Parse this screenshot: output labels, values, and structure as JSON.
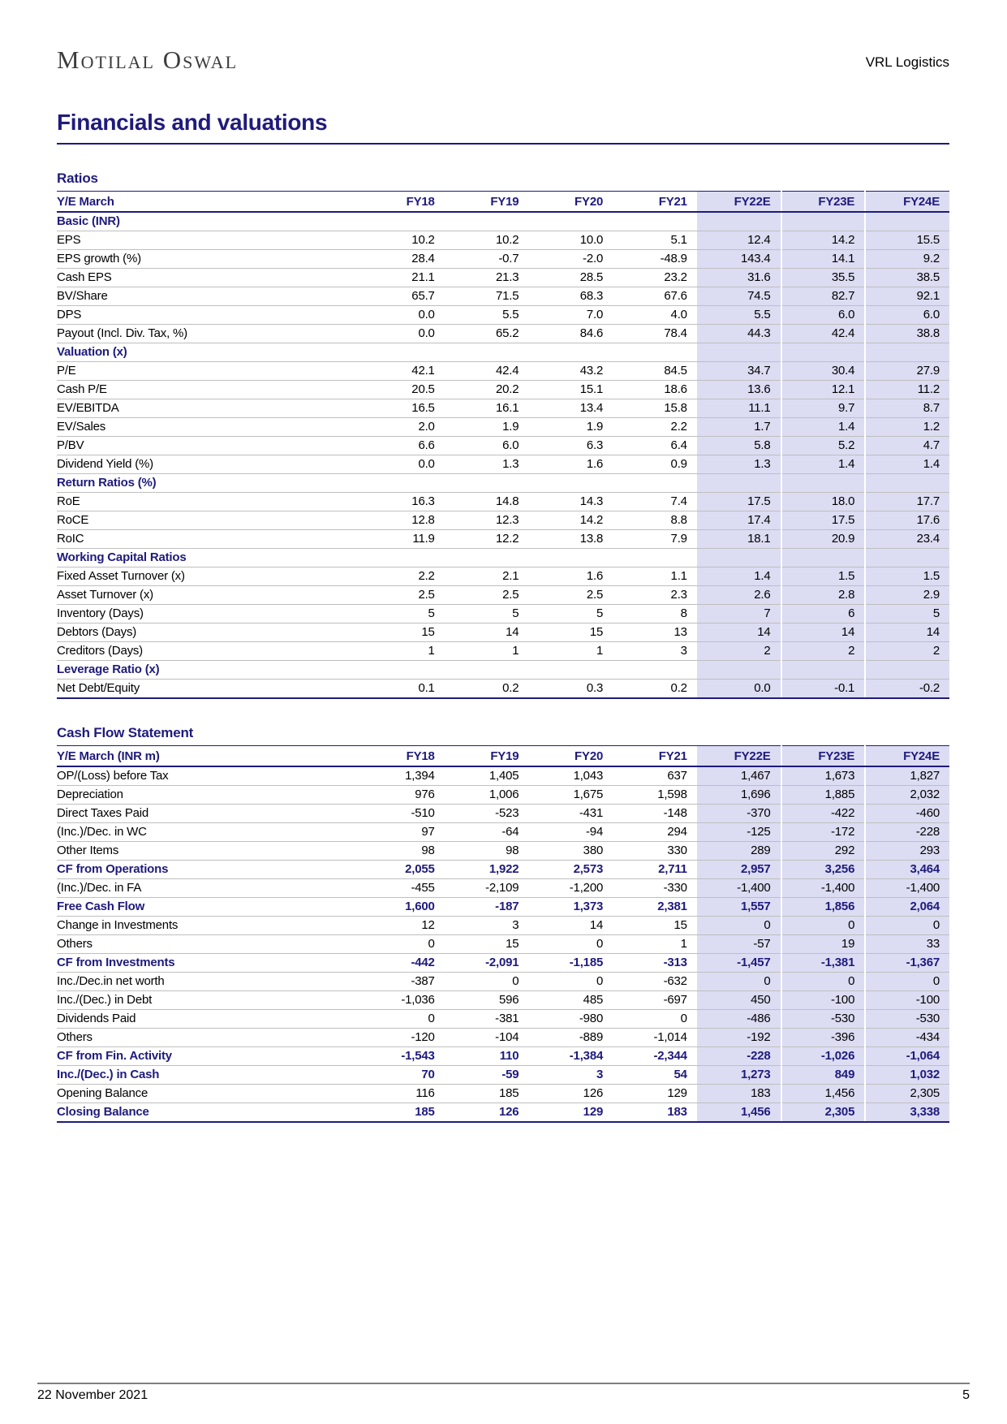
{
  "colors": {
    "navy": "#1f1b7c",
    "highlight_lavender": "#dcdcf3",
    "row_separator": "#bfbfbf",
    "footer_rule": "#7f7f7f",
    "logo_gray": "#3c3c3c"
  },
  "header": {
    "logo_text": "Motilal Oswal",
    "product_name": "VRL Logistics"
  },
  "page_title": "Financials and valuations",
  "tables": [
    {
      "title": "Ratios",
      "label_header": "Y/E March",
      "columns": [
        "FY18",
        "FY19",
        "FY20",
        "FY21",
        "FY22E",
        "FY23E",
        "FY24E"
      ],
      "highlight_from": 4,
      "rows": [
        {
          "label": "Basic (INR)",
          "style": "section",
          "values": [
            "",
            "",
            "",
            "",
            "",
            "",
            ""
          ]
        },
        {
          "label": "EPS",
          "style": "data",
          "values": [
            "10.2",
            "10.2",
            "10.0",
            "5.1",
            "12.4",
            "14.2",
            "15.5"
          ]
        },
        {
          "label": "EPS growth (%)",
          "style": "data",
          "values": [
            "28.4",
            "-0.7",
            "-2.0",
            "-48.9",
            "143.4",
            "14.1",
            "9.2"
          ]
        },
        {
          "label": "Cash EPS",
          "style": "data",
          "values": [
            "21.1",
            "21.3",
            "28.5",
            "23.2",
            "31.6",
            "35.5",
            "38.5"
          ]
        },
        {
          "label": "BV/Share",
          "style": "data",
          "values": [
            "65.7",
            "71.5",
            "68.3",
            "67.6",
            "74.5",
            "82.7",
            "92.1"
          ]
        },
        {
          "label": "DPS",
          "style": "data",
          "values": [
            "0.0",
            "5.5",
            "7.0",
            "4.0",
            "5.5",
            "6.0",
            "6.0"
          ]
        },
        {
          "label": "Payout (Incl. Div. Tax, %)",
          "style": "data",
          "values": [
            "0.0",
            "65.2",
            "84.6",
            "78.4",
            "44.3",
            "42.4",
            "38.8"
          ]
        },
        {
          "label": "Valuation (x)",
          "style": "section",
          "values": [
            "",
            "",
            "",
            "",
            "",
            "",
            ""
          ]
        },
        {
          "label": "P/E",
          "style": "data",
          "values": [
            "42.1",
            "42.4",
            "43.2",
            "84.5",
            "34.7",
            "30.4",
            "27.9"
          ]
        },
        {
          "label": "Cash P/E",
          "style": "data",
          "values": [
            "20.5",
            "20.2",
            "15.1",
            "18.6",
            "13.6",
            "12.1",
            "11.2"
          ]
        },
        {
          "label": "EV/EBITDA",
          "style": "data",
          "values": [
            "16.5",
            "16.1",
            "13.4",
            "15.8",
            "11.1",
            "9.7",
            "8.7"
          ]
        },
        {
          "label": "EV/Sales",
          "style": "data",
          "values": [
            "2.0",
            "1.9",
            "1.9",
            "2.2",
            "1.7",
            "1.4",
            "1.2"
          ]
        },
        {
          "label": "P/BV",
          "style": "data",
          "values": [
            "6.6",
            "6.0",
            "6.3",
            "6.4",
            "5.8",
            "5.2",
            "4.7"
          ]
        },
        {
          "label": "Dividend Yield (%)",
          "style": "data",
          "values": [
            "0.0",
            "1.3",
            "1.6",
            "0.9",
            "1.3",
            "1.4",
            "1.4"
          ]
        },
        {
          "label": "Return Ratios (%)",
          "style": "section",
          "values": [
            "",
            "",
            "",
            "",
            "",
            "",
            ""
          ]
        },
        {
          "label": "RoE",
          "style": "data",
          "values": [
            "16.3",
            "14.8",
            "14.3",
            "7.4",
            "17.5",
            "18.0",
            "17.7"
          ]
        },
        {
          "label": "RoCE",
          "style": "data",
          "values": [
            "12.8",
            "12.3",
            "14.2",
            "8.8",
            "17.4",
            "17.5",
            "17.6"
          ]
        },
        {
          "label": "RoIC",
          "style": "data",
          "values": [
            "11.9",
            "12.2",
            "13.8",
            "7.9",
            "18.1",
            "20.9",
            "23.4"
          ]
        },
        {
          "label": "Working Capital Ratios",
          "style": "section",
          "values": [
            "",
            "",
            "",
            "",
            "",
            "",
            ""
          ]
        },
        {
          "label": "Fixed Asset Turnover (x)",
          "style": "data",
          "values": [
            "2.2",
            "2.1",
            "1.6",
            "1.1",
            "1.4",
            "1.5",
            "1.5"
          ]
        },
        {
          "label": "Asset Turnover (x)",
          "style": "data",
          "values": [
            "2.5",
            "2.5",
            "2.5",
            "2.3",
            "2.6",
            "2.8",
            "2.9"
          ]
        },
        {
          "label": "Inventory (Days)",
          "style": "data",
          "values": [
            "5",
            "5",
            "5",
            "8",
            "7",
            "6",
            "5"
          ]
        },
        {
          "label": "Debtors (Days)",
          "style": "data",
          "values": [
            "15",
            "14",
            "15",
            "13",
            "14",
            "14",
            "14"
          ]
        },
        {
          "label": "Creditors (Days)",
          "style": "data",
          "values": [
            "1",
            "1",
            "1",
            "3",
            "2",
            "2",
            "2"
          ]
        },
        {
          "label": "Leverage Ratio (x)",
          "style": "section",
          "values": [
            "",
            "",
            "",
            "",
            "",
            "",
            ""
          ]
        },
        {
          "label": "Net Debt/Equity",
          "style": "data",
          "values": [
            "0.1",
            "0.2",
            "0.3",
            "0.2",
            "0.0",
            "-0.1",
            "-0.2"
          ]
        }
      ]
    },
    {
      "title": "Cash Flow Statement",
      "label_header": "Y/E March (INR m)",
      "columns": [
        "FY18",
        "FY19",
        "FY20",
        "FY21",
        "FY22E",
        "FY23E",
        "FY24E"
      ],
      "highlight_from": 4,
      "rows": [
        {
          "label": "OP/(Loss) before Tax",
          "style": "data",
          "values": [
            "1,394",
            "1,405",
            "1,043",
            "637",
            "1,467",
            "1,673",
            "1,827"
          ]
        },
        {
          "label": "Depreciation",
          "style": "data",
          "values": [
            "976",
            "1,006",
            "1,675",
            "1,598",
            "1,696",
            "1,885",
            "2,032"
          ]
        },
        {
          "label": "Direct Taxes Paid",
          "style": "data",
          "values": [
            "-510",
            "-523",
            "-431",
            "-148",
            "-370",
            "-422",
            "-460"
          ]
        },
        {
          "label": "(Inc.)/Dec. in WC",
          "style": "data",
          "values": [
            "97",
            "-64",
            "-94",
            "294",
            "-125",
            "-172",
            "-228"
          ]
        },
        {
          "label": "Other Items",
          "style": "data",
          "values": [
            "98",
            "98",
            "380",
            "330",
            "289",
            "292",
            "293"
          ]
        },
        {
          "label": "CF from Operations",
          "style": "bold",
          "values": [
            "2,055",
            "1,922",
            "2,573",
            "2,711",
            "2,957",
            "3,256",
            "3,464"
          ]
        },
        {
          "label": "(Inc.)/Dec. in FA",
          "style": "data",
          "values": [
            "-455",
            "-2,109",
            "-1,200",
            "-330",
            "-1,400",
            "-1,400",
            "-1,400"
          ]
        },
        {
          "label": "Free Cash Flow",
          "style": "bold",
          "values": [
            "1,600",
            "-187",
            "1,373",
            "2,381",
            "1,557",
            "1,856",
            "2,064"
          ]
        },
        {
          "label": "Change in Investments",
          "style": "data",
          "values": [
            "12",
            "3",
            "14",
            "15",
            "0",
            "0",
            "0"
          ]
        },
        {
          "label": "Others",
          "style": "data",
          "values": [
            "0",
            "15",
            "0",
            "1",
            "-57",
            "19",
            "33"
          ]
        },
        {
          "label": "CF from Investments",
          "style": "bold",
          "values": [
            "-442",
            "-2,091",
            "-1,185",
            "-313",
            "-1,457",
            "-1,381",
            "-1,367"
          ]
        },
        {
          "label": "Inc./Dec.in net worth",
          "style": "data",
          "values": [
            "-387",
            "0",
            "0",
            "-632",
            "0",
            "0",
            "0"
          ]
        },
        {
          "label": "Inc./(Dec.) in Debt",
          "style": "data",
          "values": [
            "-1,036",
            "596",
            "485",
            "-697",
            "450",
            "-100",
            "-100"
          ]
        },
        {
          "label": "Dividends Paid",
          "style": "data",
          "values": [
            "0",
            "-381",
            "-980",
            "0",
            "-486",
            "-530",
            "-530"
          ]
        },
        {
          "label": "Others",
          "style": "data",
          "values": [
            "-120",
            "-104",
            "-889",
            "-1,014",
            "-192",
            "-396",
            "-434"
          ]
        },
        {
          "label": "CF from Fin. Activity",
          "style": "bold",
          "values": [
            "-1,543",
            "110",
            "-1,384",
            "-2,344",
            "-228",
            "-1,026",
            "-1,064"
          ]
        },
        {
          "label": "Inc./(Dec.) in Cash",
          "style": "bold",
          "values": [
            "70",
            "-59",
            "3",
            "54",
            "1,273",
            "849",
            "1,032"
          ]
        },
        {
          "label": "Opening Balance",
          "style": "data",
          "values": [
            "116",
            "185",
            "126",
            "129",
            "183",
            "1,456",
            "2,305"
          ]
        },
        {
          "label": "Closing Balance",
          "style": "bold",
          "values": [
            "185",
            "126",
            "129",
            "183",
            "1,456",
            "2,305",
            "3,338"
          ]
        }
      ]
    }
  ],
  "footer": {
    "date": "22 November 2021",
    "page_number": "5"
  }
}
